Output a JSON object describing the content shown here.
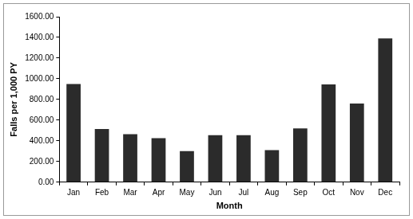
{
  "chart_data": {
    "type": "bar",
    "x_label": "Month",
    "y_label": "Falls per 1,000 PY",
    "categories": [
      "Jan",
      "Feb",
      "Mar",
      "Apr",
      "May",
      "Jun",
      "Jul",
      "Aug",
      "Sep",
      "Oct",
      "Nov",
      "Dec"
    ],
    "values": [
      950,
      515,
      465,
      425,
      300,
      455,
      455,
      310,
      520,
      945,
      760,
      1390
    ],
    "color": "#2b2b2b",
    "ylim": [
      0,
      1600
    ],
    "yticks": [
      {
        "value": 0,
        "label": "0.00"
      },
      {
        "value": 200,
        "label": "200.00"
      },
      {
        "value": 400,
        "label": "400.00"
      },
      {
        "value": 600,
        "label": "600.00"
      },
      {
        "value": 800,
        "label": "800.00"
      },
      {
        "value": 1000,
        "label": "1000.00"
      },
      {
        "value": 1200,
        "label": "1200.00"
      },
      {
        "value": 1400,
        "label": "1400.00"
      },
      {
        "value": 1600,
        "label": "1600.00"
      }
    ],
    "grid": false
  }
}
